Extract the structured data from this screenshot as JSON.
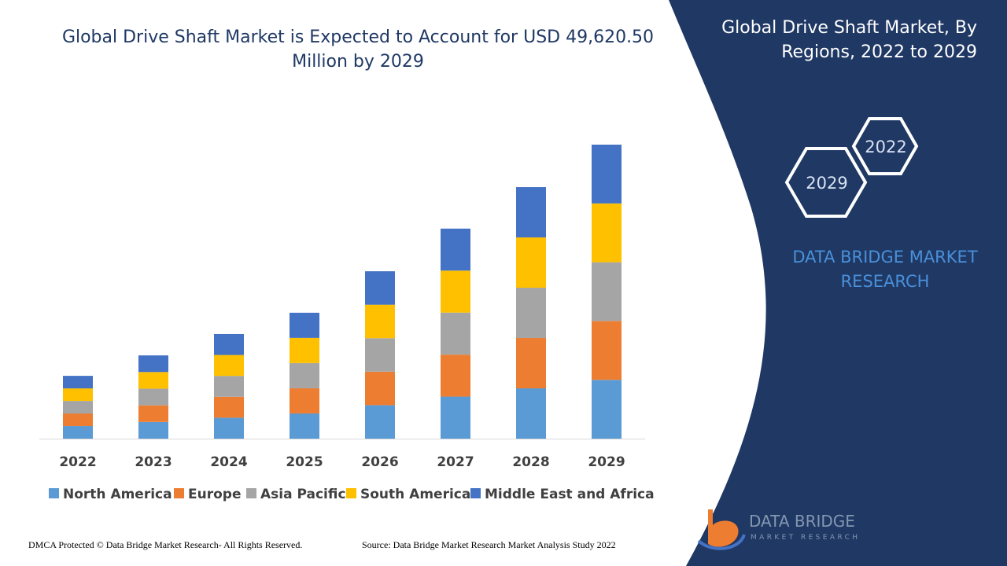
{
  "chart_data": {
    "type": "bar",
    "stacked": true,
    "title": "Global Drive Shaft Market is Expected to Account for USD 49,620.50 Million by 2029",
    "categories": [
      "2022",
      "2023",
      "2024",
      "2025",
      "2026",
      "2027",
      "2028",
      "2029"
    ],
    "series": [
      {
        "name": "North America",
        "color": "#5b9bd5",
        "values": [
          2120,
          2810,
          3530,
          4250,
          5650,
          7090,
          8490,
          9920
        ]
      },
      {
        "name": "Europe",
        "color": "#ed7d31",
        "values": [
          2120,
          2810,
          3530,
          4250,
          5650,
          7090,
          8490,
          9930
        ]
      },
      {
        "name": "Asia Pacific",
        "color": "#a5a5a5",
        "values": [
          2120,
          2810,
          3530,
          4250,
          5650,
          7090,
          8490,
          9920
        ]
      },
      {
        "name": "South America",
        "color": "#ffc000",
        "values": [
          2120,
          2810,
          3530,
          4250,
          5650,
          7090,
          8490,
          9930
        ]
      },
      {
        "name": "Middle East and Africa",
        "color": "#4472c4",
        "values": [
          2120,
          2810,
          3530,
          4250,
          5650,
          7090,
          8490,
          9920
        ]
      }
    ]
  },
  "side_panel": {
    "title": "Global Drive Shaft Market, By Regions, 2022 to 2029",
    "hexagons": [
      "2022",
      "2029"
    ],
    "brand": "DATA BRIDGE MARKET RESEARCH"
  },
  "logo": {
    "name": "DATA BRIDGE",
    "tagline": "MARKET RESEARCH"
  },
  "footer": {
    "copyright": "DMCA Protected © Data Bridge Market Research- All Rights Reserved.",
    "source": "Source: Data Bridge Market Research Market Analysis Study 2022"
  }
}
